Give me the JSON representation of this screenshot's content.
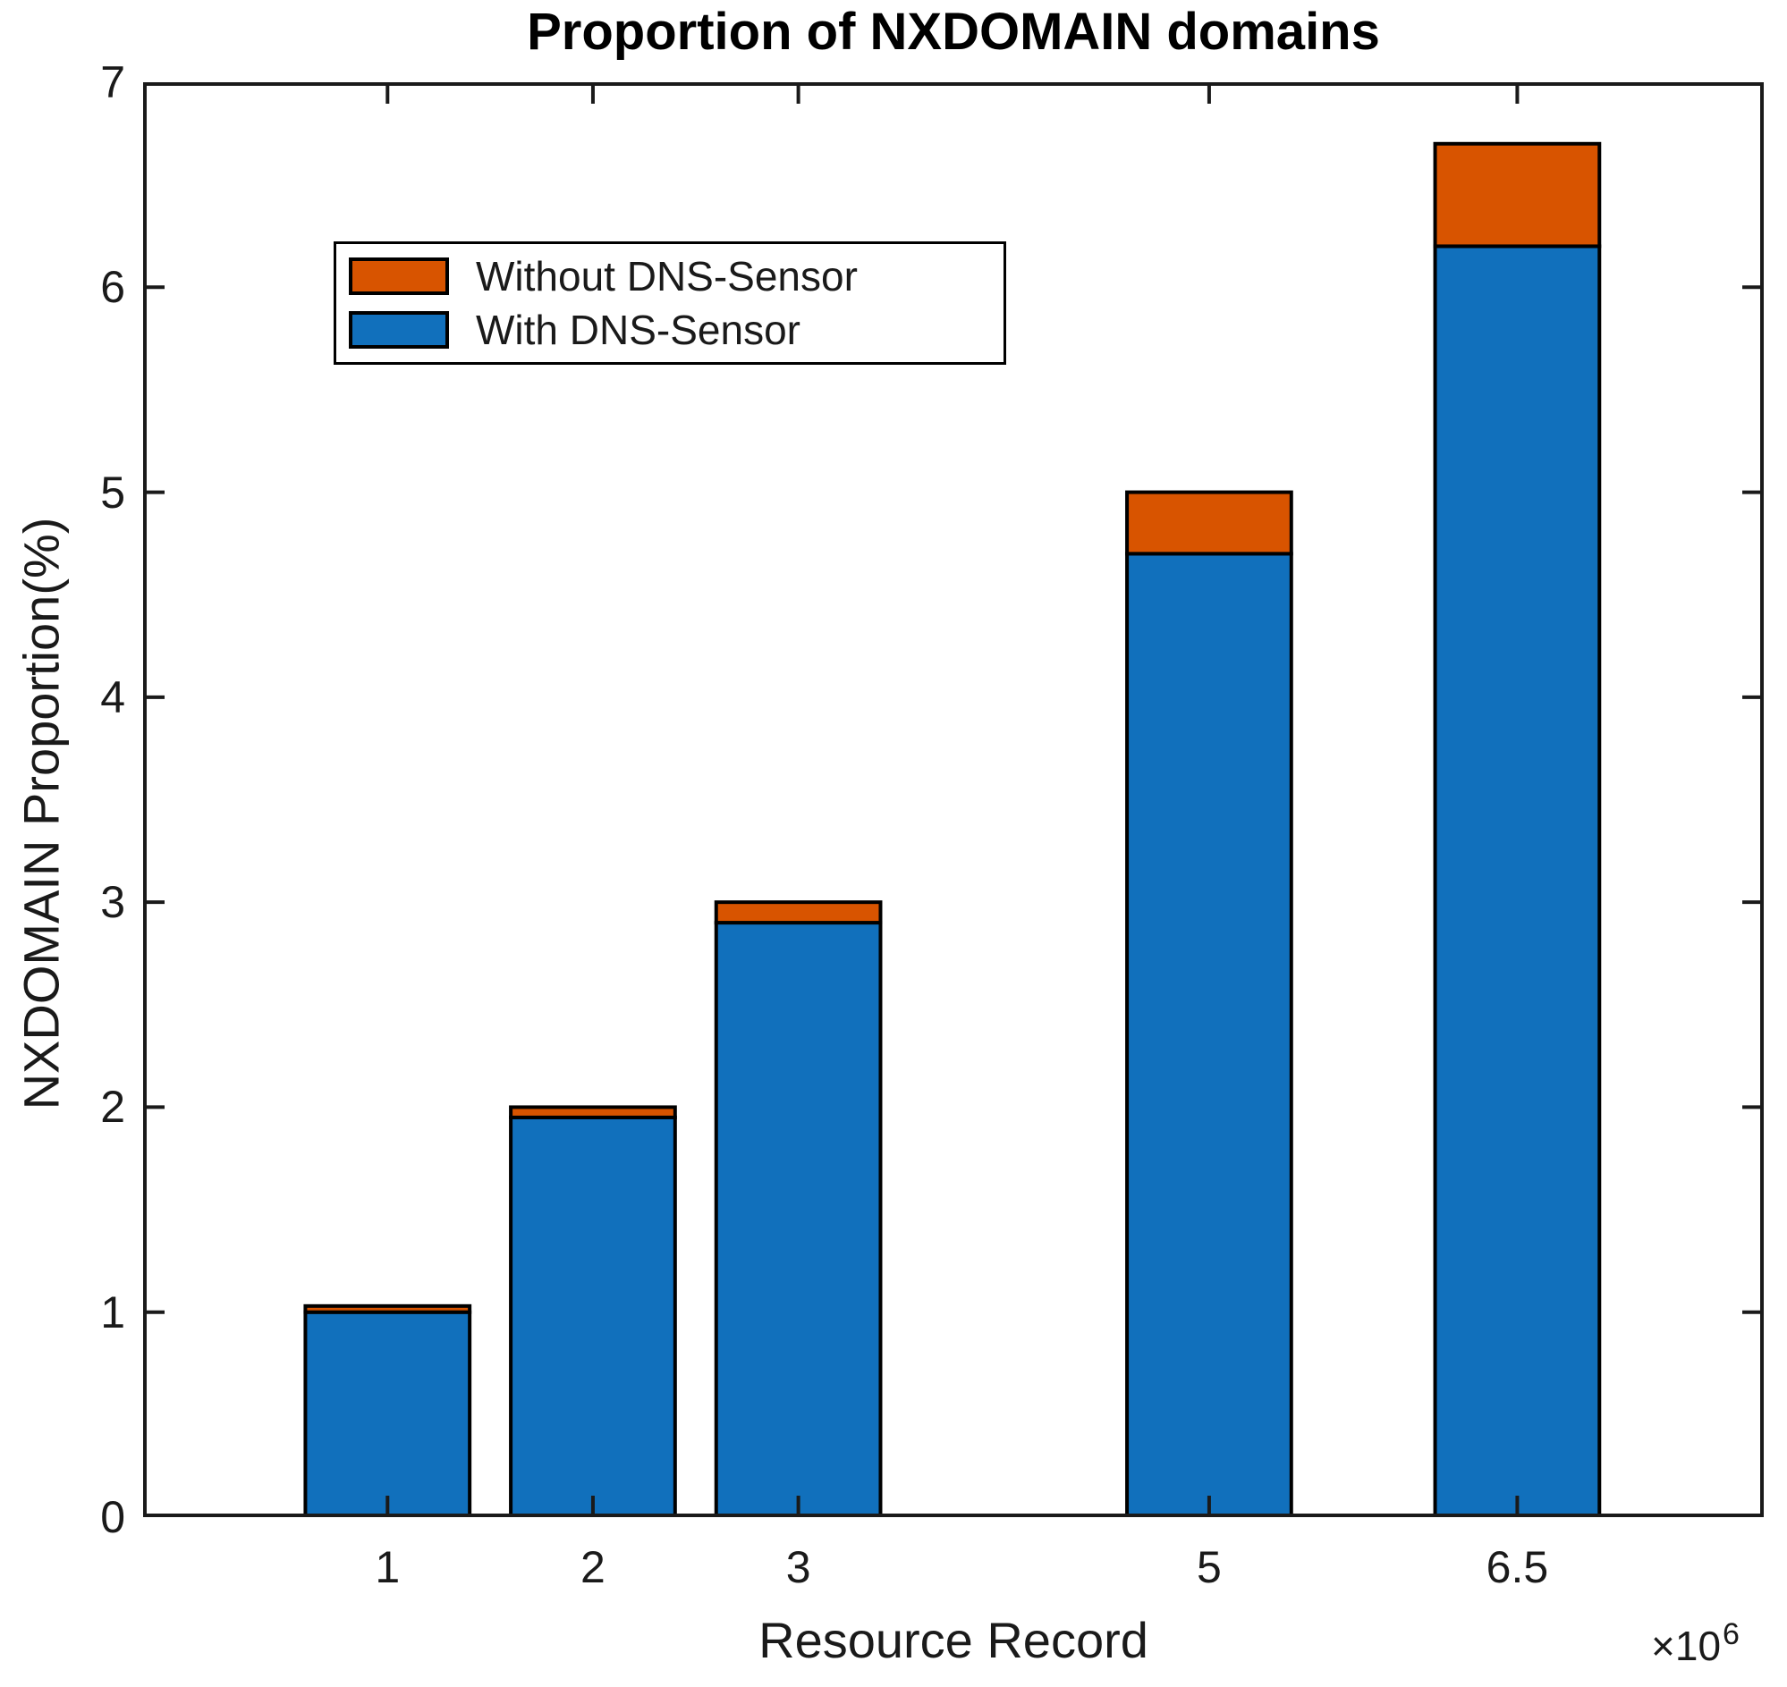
{
  "chart_data": {
    "type": "bar",
    "stacked": true,
    "title": "Proportion of NXDOMAIN domains",
    "xlabel": "Resource Record",
    "ylabel": "NXDOMAIN Proportion(%)",
    "x_multiplier": {
      "base": "×10",
      "exponent": "6"
    },
    "categories": [
      "1",
      "2",
      "3",
      "5",
      "6.5"
    ],
    "x_values": [
      1,
      2,
      3,
      5,
      6.5
    ],
    "series": [
      {
        "name": "With DNS-Sensor",
        "color": "#1170BC",
        "values": [
          1.0,
          1.95,
          2.9,
          4.7,
          6.2
        ]
      },
      {
        "name": "Without DNS-Sensor",
        "color": "#D85400",
        "values": [
          0.03,
          0.05,
          0.1,
          0.3,
          0.5
        ]
      }
    ],
    "stack_totals": [
      1.03,
      2.0,
      3.0,
      5.0,
      6.7
    ],
    "legend": {
      "position": "upper-left",
      "entries": [
        "Without DNS-Sensor",
        "With DNS-Sensor"
      ]
    },
    "ylim": [
      0,
      7
    ],
    "yticks": [
      0,
      1,
      2,
      3,
      4,
      5,
      6,
      7
    ],
    "xlim": [
      -0.19,
      7.7
    ],
    "bar_width": 0.8,
    "grid": false,
    "axis_color": "#1a1a1a",
    "bar_edge_color": "#000000",
    "background_color": "#ffffff"
  }
}
